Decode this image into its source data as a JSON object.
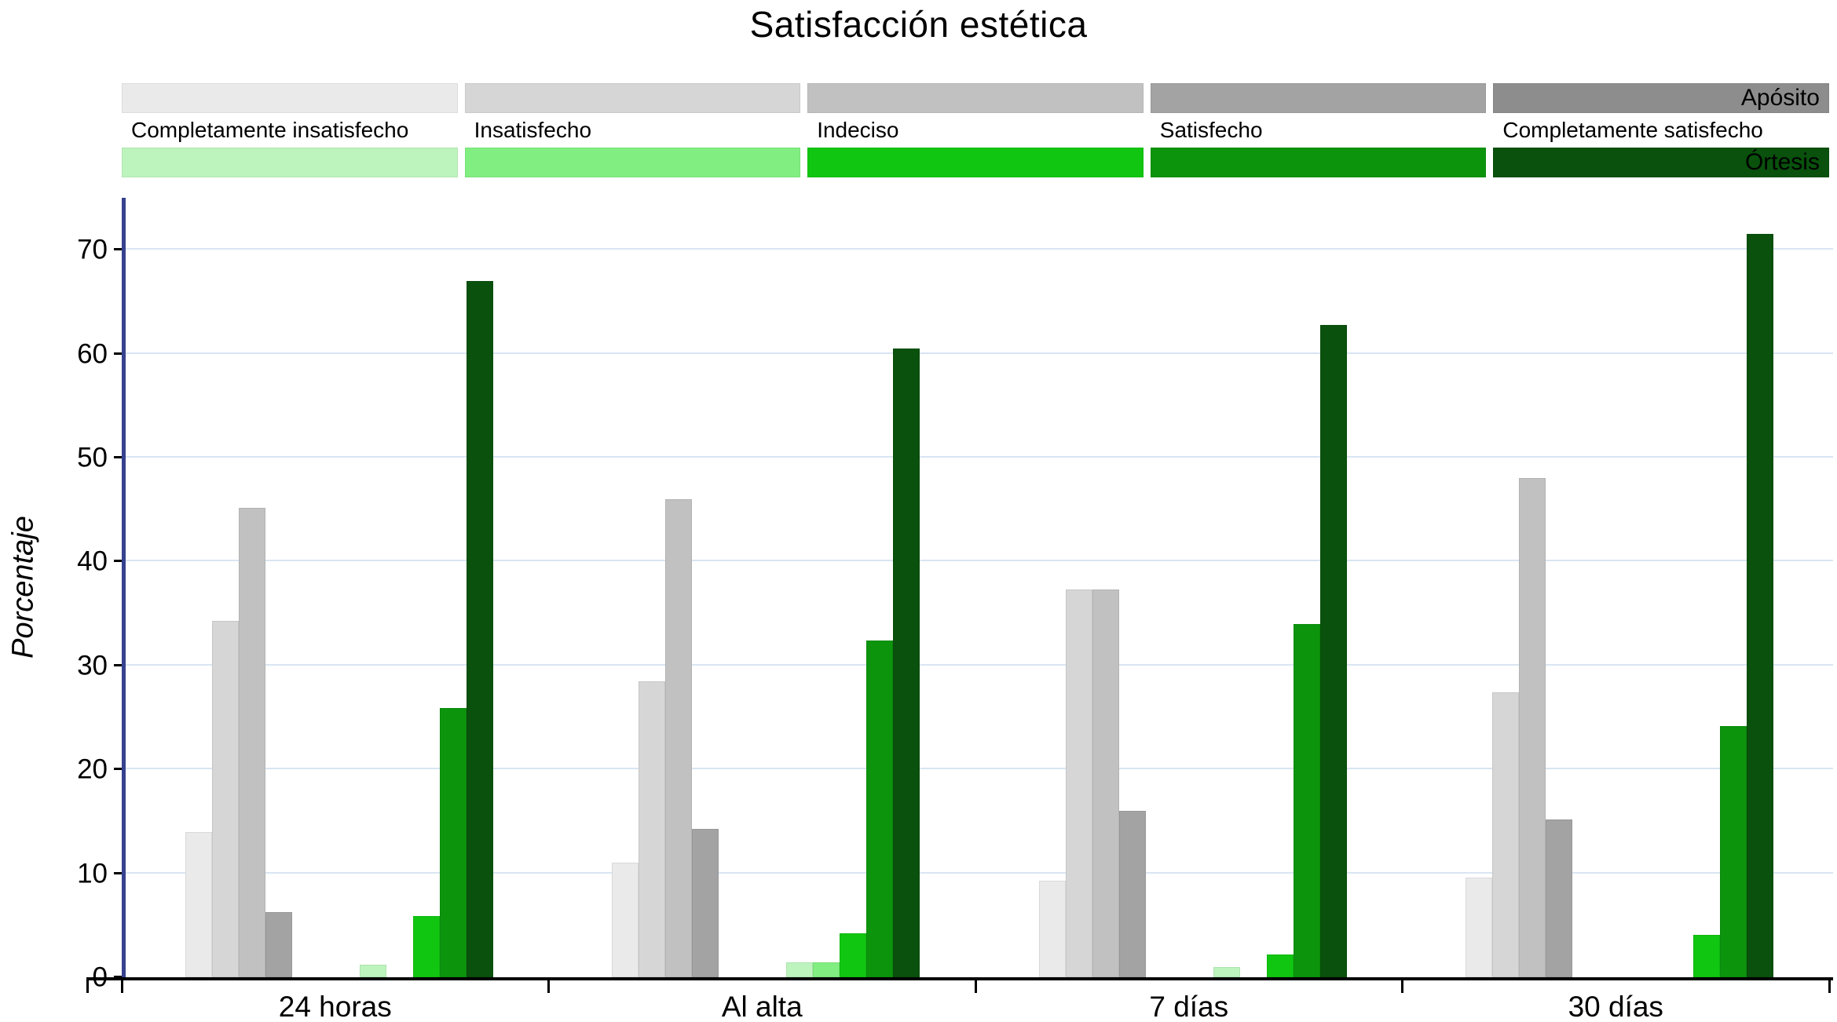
{
  "chart_data": {
    "type": "bar",
    "title": "Satisfacción estética",
    "ylabel": "Porcentaje",
    "ylim": [
      0,
      75
    ],
    "yticks": [
      0,
      10,
      20,
      30,
      40,
      50,
      60,
      70
    ],
    "categories": [
      "24 horas",
      "Al alta",
      "7 días",
      "30 días"
    ],
    "levels": [
      "Completamente insatisfecho",
      "Insatisfecho",
      "Indeciso",
      "Satisfecho",
      "Completamente satisfecho"
    ],
    "grid_color": "#d9e5f2",
    "y_axis_color": "#37428e",
    "x_axis_color": "#000000",
    "legend_position": "top",
    "groups": [
      {
        "name": "Apósito",
        "colors": [
          "#eaeaea",
          "#d6d6d6",
          "#c1c1c1",
          "#a3a3a3",
          "#8d8d8d"
        ],
        "series": [
          {
            "name": "Completamente insatisfecho",
            "values": [
              14.0,
              11.0,
              9.3,
              9.6
            ]
          },
          {
            "name": "Insatisfecho",
            "values": [
              34.3,
              28.5,
              37.3,
              27.4
            ]
          },
          {
            "name": "Indeciso",
            "values": [
              45.2,
              46.0,
              37.3,
              48.0
            ]
          },
          {
            "name": "Satisfecho",
            "values": [
              6.3,
              14.3,
              16.0,
              15.2
            ]
          },
          {
            "name": "Completamente satisfecho",
            "values": [
              0,
              0,
              0,
              0
            ]
          }
        ]
      },
      {
        "name": "Órtesis",
        "colors": [
          "#bdf4bd",
          "#81ee81",
          "#11c611",
          "#0c940d",
          "#09510c"
        ],
        "series": [
          {
            "name": "Completamente insatisfecho",
            "values": [
              1.2,
              1.4,
              1.0,
              0
            ]
          },
          {
            "name": "Insatisfecho",
            "values": [
              0,
              1.4,
              0,
              0
            ]
          },
          {
            "name": "Indeciso",
            "values": [
              5.9,
              4.2,
              2.2,
              4.1
            ]
          },
          {
            "name": "Satisfecho",
            "values": [
              25.9,
              32.4,
              34.0,
              24.2
            ]
          },
          {
            "name": "Completamente satisfecho",
            "values": [
              67.0,
              60.5,
              62.8,
              71.5
            ]
          }
        ]
      }
    ]
  }
}
